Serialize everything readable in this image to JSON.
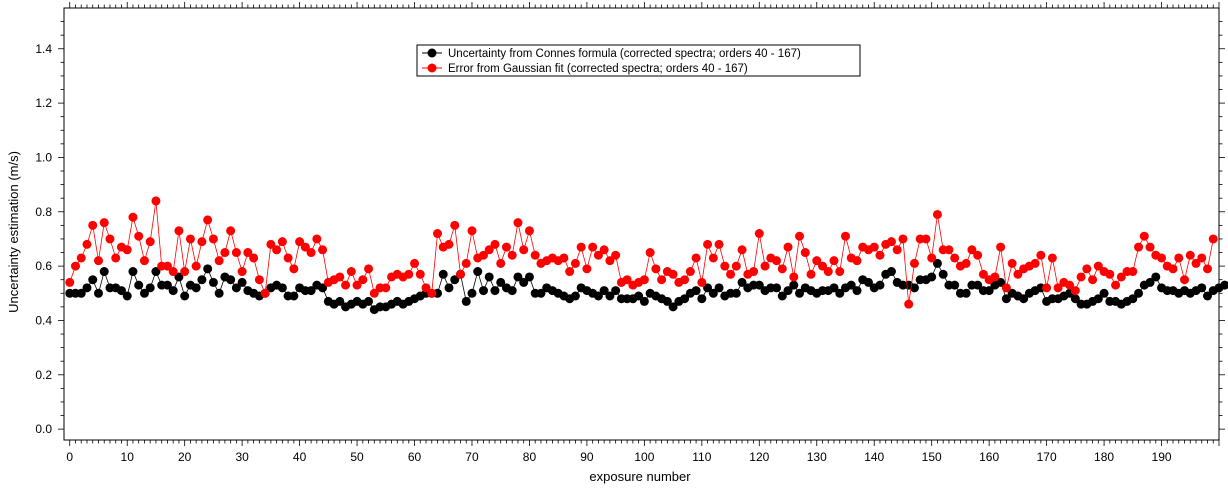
{
  "chart_data": {
    "type": "scatter",
    "title": "",
    "xlabel": "exposure number",
    "ylabel": "Uncertainty estimation (m/s)",
    "xlim": [
      -1,
      200
    ],
    "ylim": [
      -0.04,
      1.55
    ],
    "x_ticks": [
      0,
      10,
      20,
      30,
      40,
      50,
      60,
      70,
      80,
      90,
      100,
      110,
      120,
      130,
      140,
      150,
      160,
      170,
      180,
      190
    ],
    "x_tick_labels": [
      "0",
      "10",
      "20",
      "30",
      "40",
      "50",
      "60",
      "70",
      "80",
      "90",
      "100",
      "110",
      "120",
      "130",
      "140",
      "150",
      "160",
      "170",
      "180",
      "190"
    ],
    "y_ticks": [
      0.0,
      0.2,
      0.4,
      0.6,
      0.8,
      1.0,
      1.2,
      1.4
    ],
    "y_tick_labels": [
      "0.0",
      "0.2",
      "0.4",
      "0.6",
      "0.8",
      "1.0",
      "1.2",
      "1.4"
    ],
    "grid": false,
    "legend_position": "top-center",
    "series": [
      {
        "name": "Uncertainty from Connes formula (corrected spectra; orders 40 - 167)",
        "color": "#000000",
        "y": [
          0.5,
          0.5,
          0.5,
          0.52,
          0.55,
          0.5,
          0.58,
          0.52,
          0.52,
          0.51,
          0.49,
          0.58,
          0.53,
          0.5,
          0.52,
          0.58,
          0.53,
          0.53,
          0.51,
          0.56,
          0.49,
          0.53,
          0.52,
          0.55,
          0.59,
          0.54,
          0.5,
          0.56,
          0.55,
          0.52,
          0.54,
          0.51,
          0.5,
          0.49,
          0.5,
          0.52,
          0.53,
          0.52,
          0.49,
          0.49,
          0.52,
          0.51,
          0.51,
          0.53,
          0.52,
          0.47,
          0.46,
          0.47,
          0.45,
          0.46,
          0.47,
          0.46,
          0.47,
          0.44,
          0.45,
          0.45,
          0.46,
          0.47,
          0.46,
          0.47,
          0.48,
          0.49,
          0.5,
          0.5,
          0.5,
          0.57,
          0.52,
          0.55,
          0.57,
          0.47,
          0.5,
          0.58,
          0.51,
          0.56,
          0.51,
          0.54,
          0.52,
          0.51,
          0.56,
          0.54,
          0.56,
          0.5,
          0.5,
          0.52,
          0.51,
          0.5,
          0.49,
          0.48,
          0.49,
          0.52,
          0.51,
          0.5,
          0.49,
          0.51,
          0.49,
          0.51,
          0.48,
          0.48,
          0.48,
          0.49,
          0.47,
          0.5,
          0.49,
          0.48,
          0.47,
          0.45,
          0.47,
          0.48,
          0.5,
          0.51,
          0.48,
          0.52,
          0.5,
          0.52,
          0.49,
          0.5,
          0.5,
          0.54,
          0.52,
          0.53,
          0.53,
          0.51,
          0.52,
          0.52,
          0.49,
          0.51,
          0.53,
          0.5,
          0.52,
          0.51,
          0.5,
          0.51,
          0.51,
          0.52,
          0.5,
          0.52,
          0.53,
          0.51,
          0.55,
          0.54,
          0.52,
          0.53,
          0.57,
          0.58,
          0.54,
          0.53,
          0.53,
          0.52,
          0.55,
          0.55,
          0.56,
          0.61,
          0.57,
          0.53,
          0.53,
          0.5,
          0.5,
          0.53,
          0.53,
          0.51,
          0.51,
          0.53,
          0.54,
          0.48,
          0.5,
          0.49,
          0.48,
          0.5,
          0.51,
          0.52,
          0.47,
          0.48,
          0.48,
          0.49,
          0.5,
          0.48,
          0.46,
          0.46,
          0.47,
          0.48,
          0.5,
          0.47,
          0.47,
          0.46,
          0.47,
          0.48,
          0.5,
          0.53,
          0.54,
          0.56,
          0.52,
          0.51,
          0.51,
          0.5,
          0.51,
          0.5,
          0.51,
          0.52,
          0.49,
          0.51,
          0.52,
          0.53
        ]
      },
      {
        "name": "Error from Gaussian fit (corrected spectra; orders 40 - 167)",
        "color": "#ff0000",
        "y": [
          0.54,
          0.6,
          0.63,
          0.68,
          0.75,
          0.62,
          0.76,
          0.7,
          0.63,
          0.67,
          0.66,
          0.78,
          0.71,
          0.62,
          0.69,
          0.84,
          0.6,
          0.6,
          0.58,
          0.73,
          0.58,
          0.7,
          0.6,
          0.69,
          0.77,
          0.7,
          0.62,
          0.65,
          0.73,
          0.65,
          0.58,
          0.65,
          0.63,
          0.55,
          0.5,
          0.68,
          0.66,
          0.69,
          0.63,
          0.59,
          0.69,
          0.67,
          0.65,
          0.7,
          0.66,
          0.54,
          0.55,
          0.56,
          0.53,
          0.58,
          0.53,
          0.55,
          0.59,
          0.5,
          0.52,
          0.52,
          0.56,
          0.57,
          0.56,
          0.57,
          0.61,
          0.57,
          0.52,
          0.5,
          0.72,
          0.67,
          0.68,
          0.75,
          0.57,
          0.61,
          0.73,
          0.63,
          0.64,
          0.66,
          0.68,
          0.61,
          0.67,
          0.64,
          0.76,
          0.66,
          0.73,
          0.64,
          0.61,
          0.62,
          0.63,
          0.62,
          0.63,
          0.58,
          0.61,
          0.67,
          0.59,
          0.67,
          0.64,
          0.66,
          0.62,
          0.64,
          0.54,
          0.55,
          0.53,
          0.54,
          0.55,
          0.65,
          0.59,
          0.55,
          0.58,
          0.57,
          0.54,
          0.55,
          0.58,
          0.63,
          0.54,
          0.68,
          0.63,
          0.68,
          0.6,
          0.57,
          0.6,
          0.66,
          0.57,
          0.58,
          0.72,
          0.6,
          0.63,
          0.62,
          0.59,
          0.67,
          0.56,
          0.71,
          0.65,
          0.57,
          0.62,
          0.6,
          0.58,
          0.62,
          0.58,
          0.71,
          0.63,
          0.62,
          0.67,
          0.66,
          0.67,
          0.64,
          0.68,
          0.69,
          0.66,
          0.7,
          0.46,
          0.61,
          0.7,
          0.7,
          0.63,
          0.79,
          0.66,
          0.66,
          0.63,
          0.6,
          0.61,
          0.66,
          0.64,
          0.57,
          0.55,
          0.56,
          0.67,
          0.52,
          0.61,
          0.57,
          0.59,
          0.6,
          0.61,
          0.64,
          0.52,
          0.63,
          0.52,
          0.54,
          0.53,
          0.51,
          0.56,
          0.59,
          0.55,
          0.6,
          0.58,
          0.57,
          0.53,
          0.56,
          0.58,
          0.58,
          0.67,
          0.71,
          0.67,
          0.64,
          0.63,
          0.6,
          0.59,
          0.63,
          0.55,
          0.64,
          0.61,
          0.63,
          0.59,
          0.7
        ]
      }
    ]
  }
}
